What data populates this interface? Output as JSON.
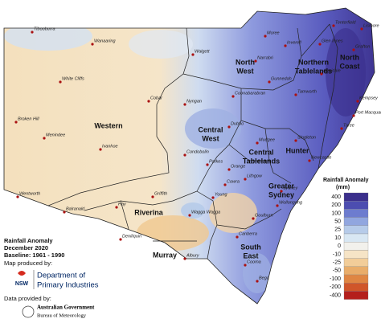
{
  "legend": {
    "title": "Rainfall Anomaly",
    "unit": "(mm)",
    "items": [
      {
        "label": 400,
        "color": "#3b2f8c"
      },
      {
        "label": 200,
        "color": "#4c4db0"
      },
      {
        "label": 100,
        "color": "#6d7ccf"
      },
      {
        "label": 50,
        "color": "#91a6df"
      },
      {
        "label": 25,
        "color": "#b6cbe9"
      },
      {
        "label": 10,
        "color": "#d8e7f3"
      },
      {
        "label": 0,
        "color": "#f2f1ec"
      },
      {
        "label": -10,
        "color": "#f6e4c6"
      },
      {
        "label": -25,
        "color": "#f2cd99"
      },
      {
        "label": -50,
        "color": "#e9ad6a"
      },
      {
        "label": -100,
        "color": "#df8643"
      },
      {
        "label": -200,
        "color": "#d0562a"
      },
      {
        "label": -400,
        "color": "#b41f1c"
      }
    ]
  },
  "info": {
    "title": "Rainfall Anomaly",
    "period": "December 2020",
    "baseline": "Baseline: 1961 - 1990",
    "produced_by": "Map produced by:",
    "nsw": "NSW",
    "department": [
      "Department of",
      "Primary Industries"
    ],
    "data_by": "Data provided by:",
    "agency": [
      "Australian Government",
      "Bureau of Meteorology"
    ]
  },
  "regions": [
    [
      "North",
      "West"
    ],
    [
      "Northern",
      "Tablelands"
    ],
    [
      "North",
      "Coast"
    ],
    [
      "Western"
    ],
    [
      "Central",
      "West"
    ],
    [
      "Central",
      "Tablelands"
    ],
    [
      "Hunter"
    ],
    [
      "Greater",
      "Sydney"
    ],
    [
      "Riverina"
    ],
    [
      "Murray"
    ],
    [
      "South",
      "East"
    ]
  ],
  "towns": [
    "Tibooburra",
    "Wanaaring",
    "Walgett",
    "Moree",
    "Inverell",
    "Glen Innes",
    "Tenterfield",
    "Lismore",
    "Grafton",
    "Armidale",
    "Narrabri",
    "Tamworth",
    "Gunnedah",
    "Coonabarabran",
    "Port Macquarie",
    "Kempsey",
    "Taree",
    "White Cliffs",
    "Cobar",
    "Nyngan",
    "Dubbo",
    "Broken Hill",
    "Menindee",
    "Ivanhoe",
    "Condobolin",
    "Parkes",
    "Mudgee",
    "Singleton",
    "Newcastle",
    "Orange",
    "Lithgow",
    "Cowra",
    "Sydney",
    "Wollongong",
    "Young",
    "Goulburn",
    "Wentworth",
    "Balranald",
    "Hay",
    "Griffith",
    "Wagga Wagga",
    "Canberra",
    "Deniliquin",
    "Albury",
    "Cooma",
    "Bega"
  ]
}
